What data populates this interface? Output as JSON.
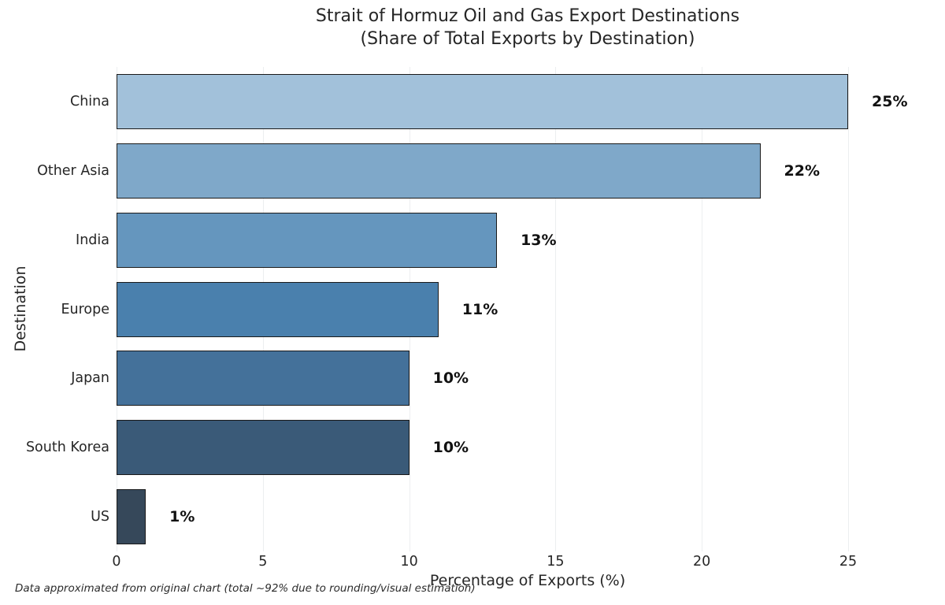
{
  "chart_data": {
    "type": "bar",
    "orientation": "horizontal",
    "title": "Strait of Hormuz Oil and Gas Export Destinations",
    "subtitle": "(Share of Total Exports by Destination)",
    "categories": [
      "China",
      "Other Asia",
      "India",
      "Europe",
      "Japan",
      "South Korea",
      "US"
    ],
    "values": [
      25,
      22,
      13,
      11,
      10,
      10,
      1
    ],
    "value_labels": [
      "25%",
      "22%",
      "13%",
      "11%",
      "10%",
      "10%",
      "1%"
    ],
    "bar_colors": [
      "#a2c1da",
      "#7fa8c9",
      "#6596be",
      "#4a80ad",
      "#44719a",
      "#3a5a78",
      "#36485a"
    ],
    "bar_edge_color": "#1a1a1a",
    "xlabel": "Percentage of Exports (%)",
    "ylabel": "Destination",
    "xlim": [
      0,
      28.1
    ],
    "xticks": [
      0,
      5,
      10,
      15,
      20,
      25
    ],
    "grid": true,
    "gridline_color": "#eceef0",
    "legend": "none",
    "background_color": "#ffffff",
    "annotation": "Data approximated from original chart (total ~92% due to rounding/visual estimation)"
  }
}
